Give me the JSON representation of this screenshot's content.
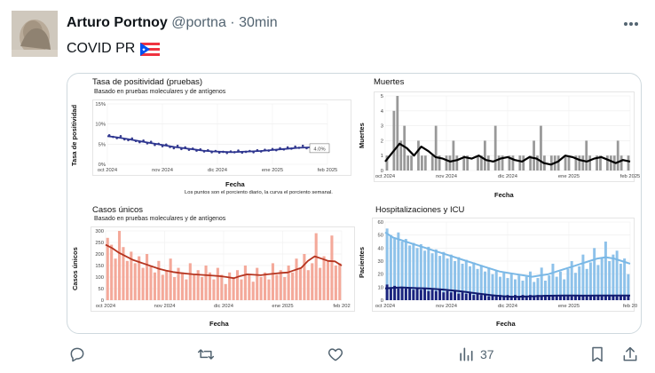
{
  "post": {
    "display_name": "Arturo Portnoy",
    "handle": "@portna",
    "separator": "·",
    "time": "30min",
    "text": "COVID PR",
    "flag": "puerto-rico-flag"
  },
  "actions": {
    "reply": "",
    "retweet": "",
    "like": "",
    "views_count": "37",
    "bookmark": "",
    "share": ""
  },
  "colors": {
    "positivity_points": "#3a3f8f",
    "positivity_line": "#2d3590",
    "deaths_bars": "#999999",
    "deaths_line": "#000000",
    "cases_bars": "#f4a99a",
    "cases_line": "#b5341f",
    "hosp_bars": "#8ec2ea",
    "hosp_line": "#7ab8e6",
    "icu_bars": "#1a237e",
    "icu_line": "#101a6e"
  },
  "chart_data": [
    {
      "type": "scatter",
      "title": "Tasa de positividad (pruebas)",
      "subtitle": "Basado en pruebas moleculares y de antígenos",
      "xlabel": "Fecha",
      "ylabel": "Tasa de positividad",
      "x_ticks": [
        "oct 2024",
        "nov 2024",
        "dic 2024",
        "ene 2025",
        "feb 2025"
      ],
      "y_ticks": [
        "0%",
        "5%",
        "10%",
        "15%"
      ],
      "ylim": [
        0,
        15
      ],
      "last_label": "4.0%",
      "note": "Los puntos son el porciento diario, la curva el porciento semanal.",
      "series": [
        {
          "name": "",
          "kind": "points",
          "values": [
            7.2,
            6.8,
            6.5,
            7.0,
            6.2,
            6.0,
            6.4,
            5.8,
            5.5,
            5.9,
            5.2,
            5.6,
            4.8,
            5.1,
            4.5,
            4.9,
            4.3,
            4.0,
            4.6,
            3.8,
            4.2,
            3.6,
            3.9,
            3.4,
            3.7,
            3.2,
            3.5,
            3.0,
            3.3,
            2.9,
            3.1,
            2.8,
            3.2,
            3.0,
            3.4,
            2.9,
            3.1,
            3.3,
            3.0,
            3.5,
            3.2,
            3.6,
            3.4,
            3.8,
            3.5,
            4.0,
            3.7,
            4.2,
            3.9,
            4.4,
            4.1,
            4.6,
            4.0,
            4.3,
            3.9,
            4.5,
            4.2,
            4.0
          ]
        },
        {
          "name": "",
          "kind": "line",
          "values": [
            7.0,
            6.7,
            6.3,
            5.9,
            5.5,
            5.1,
            4.7,
            4.3,
            4.0,
            3.7,
            3.4,
            3.2,
            3.1,
            3.0,
            3.1,
            3.2,
            3.3,
            3.5,
            3.7,
            3.9,
            4.1,
            4.2,
            4.2,
            4.0
          ]
        }
      ]
    },
    {
      "type": "bar",
      "title": "Muertes",
      "xlabel": "Fecha",
      "ylabel": "Muertes",
      "x_ticks": [
        "oct 2024",
        "nov 2024",
        "dic 2024",
        "ene 2025",
        "feb 2025"
      ],
      "y_ticks": [
        "0",
        "1",
        "2",
        "3",
        "4",
        "5"
      ],
      "ylim": [
        0,
        5
      ],
      "series": [
        {
          "name": "",
          "kind": "bars",
          "values": [
            1,
            0,
            4,
            5,
            2,
            3,
            1,
            1,
            0,
            2,
            1,
            1,
            0,
            1,
            3,
            1,
            0,
            1,
            1,
            2,
            1,
            0,
            1,
            1,
            0,
            0,
            1,
            1,
            2,
            1,
            0,
            3,
            1,
            1,
            0,
            1,
            1,
            0,
            1,
            1,
            0,
            1,
            2,
            1,
            3,
            1,
            0,
            1,
            1,
            1,
            0,
            1,
            1,
            0,
            1,
            1,
            1,
            2,
            1,
            0,
            1,
            1,
            0,
            1,
            1,
            1,
            2,
            1,
            0,
            1
          ]
        },
        {
          "name": "",
          "kind": "line",
          "values": [
            0.6,
            1.2,
            1.8,
            1.5,
            1.0,
            1.6,
            1.3,
            0.9,
            0.8,
            0.6,
            0.7,
            0.9,
            0.8,
            1.0,
            0.7,
            0.6,
            0.8,
            0.9,
            0.7,
            0.6,
            0.9,
            0.8,
            0.5,
            0.4,
            0.6,
            1.0,
            0.9,
            0.7,
            0.6,
            0.8,
            0.9,
            0.7,
            0.5,
            0.7,
            0.6
          ]
        }
      ]
    },
    {
      "type": "bar",
      "title": "Casos únicos",
      "subtitle": "Basado en pruebas moleculares y de antígenos",
      "xlabel": "Fecha",
      "ylabel": "Casos únicos",
      "x_ticks": [
        "oct 2024",
        "nov 2024",
        "dic 2024",
        "ene 2025",
        "feb 202"
      ],
      "y_ticks": [
        "0",
        "50",
        "100",
        "150",
        "200",
        "250",
        "300"
      ],
      "ylim": [
        0,
        300
      ],
      "series": [
        {
          "name": "",
          "kind": "bars",
          "values": [
            270,
            240,
            180,
            300,
            230,
            170,
            210,
            160,
            190,
            140,
            200,
            150,
            120,
            170,
            110,
            130,
            180,
            100,
            140,
            120,
            90,
            160,
            110,
            130,
            100,
            150,
            120,
            90,
            140,
            110,
            70,
            120,
            100,
            130,
            90,
            150,
            110,
            80,
            140,
            100,
            120,
            90,
            160,
            110,
            130,
            100,
            150,
            120,
            180,
            140,
            200,
            130,
            160,
            290,
            140,
            190,
            170,
            280,
            150,
            160
          ]
        },
        {
          "name": "",
          "kind": "line",
          "values": [
            240,
            225,
            205,
            190,
            175,
            165,
            155,
            145,
            135,
            128,
            122,
            118,
            115,
            112,
            110,
            108,
            106,
            104,
            100,
            95,
            105,
            112,
            110,
            108,
            112,
            115,
            118,
            120,
            130,
            140,
            170,
            190,
            180,
            170,
            168,
            150
          ]
        }
      ]
    },
    {
      "type": "bar",
      "title": "Hospitalizaciones y ICU",
      "xlabel": "Fecha",
      "ylabel": "Pacientes",
      "x_ticks": [
        "oct 2024",
        "nov 2024",
        "dic 2024",
        "ene 2025",
        "feb 20"
      ],
      "y_ticks": [
        "0",
        "10",
        "20",
        "30",
        "40",
        "50",
        "60"
      ],
      "ylim": [
        0,
        60
      ],
      "series": [
        {
          "name": "",
          "kind": "bars",
          "values": [
            55,
            50,
            48,
            52,
            45,
            47,
            42,
            44,
            40,
            43,
            38,
            41,
            36,
            39,
            34,
            37,
            32,
            35,
            30,
            33,
            28,
            31,
            26,
            29,
            24,
            27,
            22,
            25,
            20,
            23,
            18,
            21,
            17,
            20,
            16,
            19,
            15,
            18,
            22,
            14,
            17,
            25,
            15,
            19,
            28,
            18,
            22,
            16,
            24,
            30,
            21,
            26,
            35,
            24,
            29,
            40,
            27,
            33,
            45,
            30,
            35,
            38,
            28,
            32,
            20
          ]
        },
        {
          "name": "",
          "kind": "line",
          "values": [
            52,
            48,
            46,
            44,
            42,
            40,
            38,
            36,
            34,
            32,
            30,
            28,
            26,
            24,
            22,
            21,
            20,
            19,
            18,
            19,
            20,
            22,
            24,
            26,
            28,
            30,
            32,
            33,
            32,
            30,
            28
          ]
        },
        {
          "name": "",
          "kind": "bars",
          "values": [
            12,
            10,
            11,
            9,
            10,
            9,
            10,
            8,
            9,
            8,
            9,
            7,
            8,
            7,
            8,
            6,
            7,
            6,
            7,
            5,
            6,
            5,
            6,
            4,
            5,
            4,
            5,
            3,
            4,
            3,
            4,
            3,
            4,
            3,
            4,
            3,
            4,
            3,
            4,
            3,
            4,
            3,
            4,
            3,
            4,
            3,
            4,
            3,
            4,
            3,
            4,
            3,
            4,
            3,
            4,
            3,
            4,
            3,
            4,
            3,
            4,
            3,
            4,
            3,
            4
          ]
        },
        {
          "name": "",
          "kind": "line",
          "values": [
            9,
            9.5,
            9.8,
            9.5,
            9.2,
            9,
            8.6,
            8.2,
            7.6,
            7,
            6.2,
            5.4,
            4.6,
            3.8,
            3.2,
            2.8,
            2.6,
            2.8,
            3,
            3.2,
            3.4,
            3.5,
            3.6,
            3.6,
            3.5,
            3.5,
            3.6,
            3.6,
            3.6,
            3.6,
            3.6
          ]
        }
      ]
    }
  ]
}
